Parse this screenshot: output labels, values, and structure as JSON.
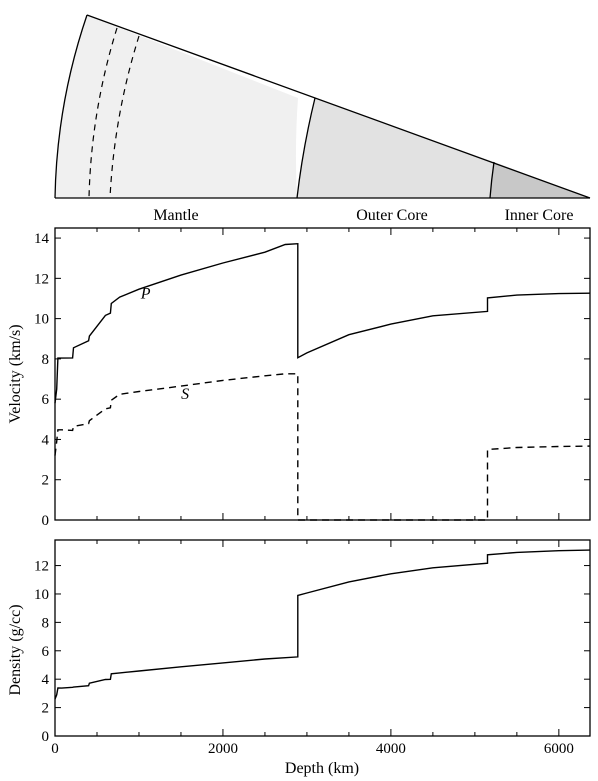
{
  "diagram": {
    "regions": [
      {
        "label": "Mantle",
        "fill": "#f0f0f0"
      },
      {
        "label": "Outer Core",
        "fill": "#e2e2e2"
      },
      {
        "label": "Inner Core",
        "fill": "#c8c8c8"
      }
    ],
    "boundaries_km": {
      "transition_zone": [
        410,
        660
      ],
      "core_mantle": 2891,
      "inner_outer": 5150,
      "center": 6371
    }
  },
  "chart_data": [
    {
      "type": "line",
      "ylabel": "Velocity (km/s)",
      "xlim": [
        0,
        6371
      ],
      "ylim": [
        0,
        14.5
      ],
      "yticks": [
        0,
        2,
        4,
        6,
        8,
        10,
        12,
        14
      ],
      "xticks": [
        0,
        2000,
        4000,
        6000
      ],
      "show_xtick_labels": false,
      "series": [
        {
          "name": "P",
          "style": "solid",
          "points": [
            [
              0,
              5.8
            ],
            [
              20,
              6.5
            ],
            [
              35,
              8.04
            ],
            [
              80,
              8.04
            ],
            [
              210,
              8.05
            ],
            [
              220,
              8.55
            ],
            [
              400,
              8.9
            ],
            [
              410,
              9.13
            ],
            [
              600,
              10.16
            ],
            [
              660,
              10.27
            ],
            [
              670,
              10.75
            ],
            [
              771,
              11.07
            ],
            [
              1000,
              11.46
            ],
            [
              1500,
              12.16
            ],
            [
              2000,
              12.76
            ],
            [
              2500,
              13.3
            ],
            [
              2741,
              13.68
            ],
            [
              2891,
              13.72
            ],
            [
              2891,
              8.06
            ],
            [
              3000,
              8.3
            ],
            [
              3500,
              9.2
            ],
            [
              4000,
              9.73
            ],
            [
              4500,
              10.14
            ],
            [
              5150,
              10.36
            ],
            [
              5150,
              11.03
            ],
            [
              5500,
              11.17
            ],
            [
              6000,
              11.24
            ],
            [
              6371,
              11.26
            ]
          ]
        },
        {
          "name": "S",
          "style": "dashed",
          "points": [
            [
              0,
              3.2
            ],
            [
              20,
              3.9
            ],
            [
              35,
              4.48
            ],
            [
              80,
              4.48
            ],
            [
              210,
              4.45
            ],
            [
              220,
              4.65
            ],
            [
              400,
              4.78
            ],
            [
              410,
              4.93
            ],
            [
              600,
              5.52
            ],
            [
              660,
              5.57
            ],
            [
              670,
              5.95
            ],
            [
              771,
              6.24
            ],
            [
              1000,
              6.38
            ],
            [
              1500,
              6.65
            ],
            [
              2000,
              6.93
            ],
            [
              2500,
              7.16
            ],
            [
              2741,
              7.26
            ],
            [
              2891,
              7.26
            ],
            [
              2891,
              0
            ],
            [
              5150,
              0
            ],
            [
              5150,
              3.5
            ],
            [
              5500,
              3.6
            ],
            [
              6000,
              3.65
            ],
            [
              6371,
              3.67
            ]
          ]
        }
      ],
      "curve_labels": [
        {
          "text": "P",
          "x": 1080,
          "y": 11.0
        },
        {
          "text": "S",
          "x": 1550,
          "y": 6.0
        }
      ]
    },
    {
      "type": "line",
      "ylabel": "Density (g/cc)",
      "xlabel": "Depth (km)",
      "xlim": [
        0,
        6371
      ],
      "ylim": [
        0,
        13.8
      ],
      "yticks": [
        0,
        2,
        4,
        6,
        8,
        10,
        12
      ],
      "xticks": [
        0,
        2000,
        4000,
        6000
      ],
      "series": [
        {
          "name": "",
          "style": "solid",
          "points": [
            [
              0,
              2.6
            ],
            [
              20,
              2.9
            ],
            [
              35,
              3.38
            ],
            [
              80,
              3.37
            ],
            [
              210,
              3.43
            ],
            [
              220,
              3.44
            ],
            [
              400,
              3.54
            ],
            [
              410,
              3.72
            ],
            [
              600,
              3.98
            ],
            [
              660,
              3.99
            ],
            [
              670,
              4.38
            ],
            [
              771,
              4.44
            ],
            [
              1000,
              4.58
            ],
            [
              1500,
              4.87
            ],
            [
              2000,
              5.15
            ],
            [
              2500,
              5.42
            ],
            [
              2891,
              5.57
            ],
            [
              2891,
              9.9
            ],
            [
              3000,
              10.07
            ],
            [
              3500,
              10.85
            ],
            [
              4000,
              11.42
            ],
            [
              4500,
              11.84
            ],
            [
              5150,
              12.17
            ],
            [
              5150,
              12.76
            ],
            [
              5500,
              12.93
            ],
            [
              6000,
              13.05
            ],
            [
              6371,
              13.09
            ]
          ]
        }
      ]
    }
  ]
}
